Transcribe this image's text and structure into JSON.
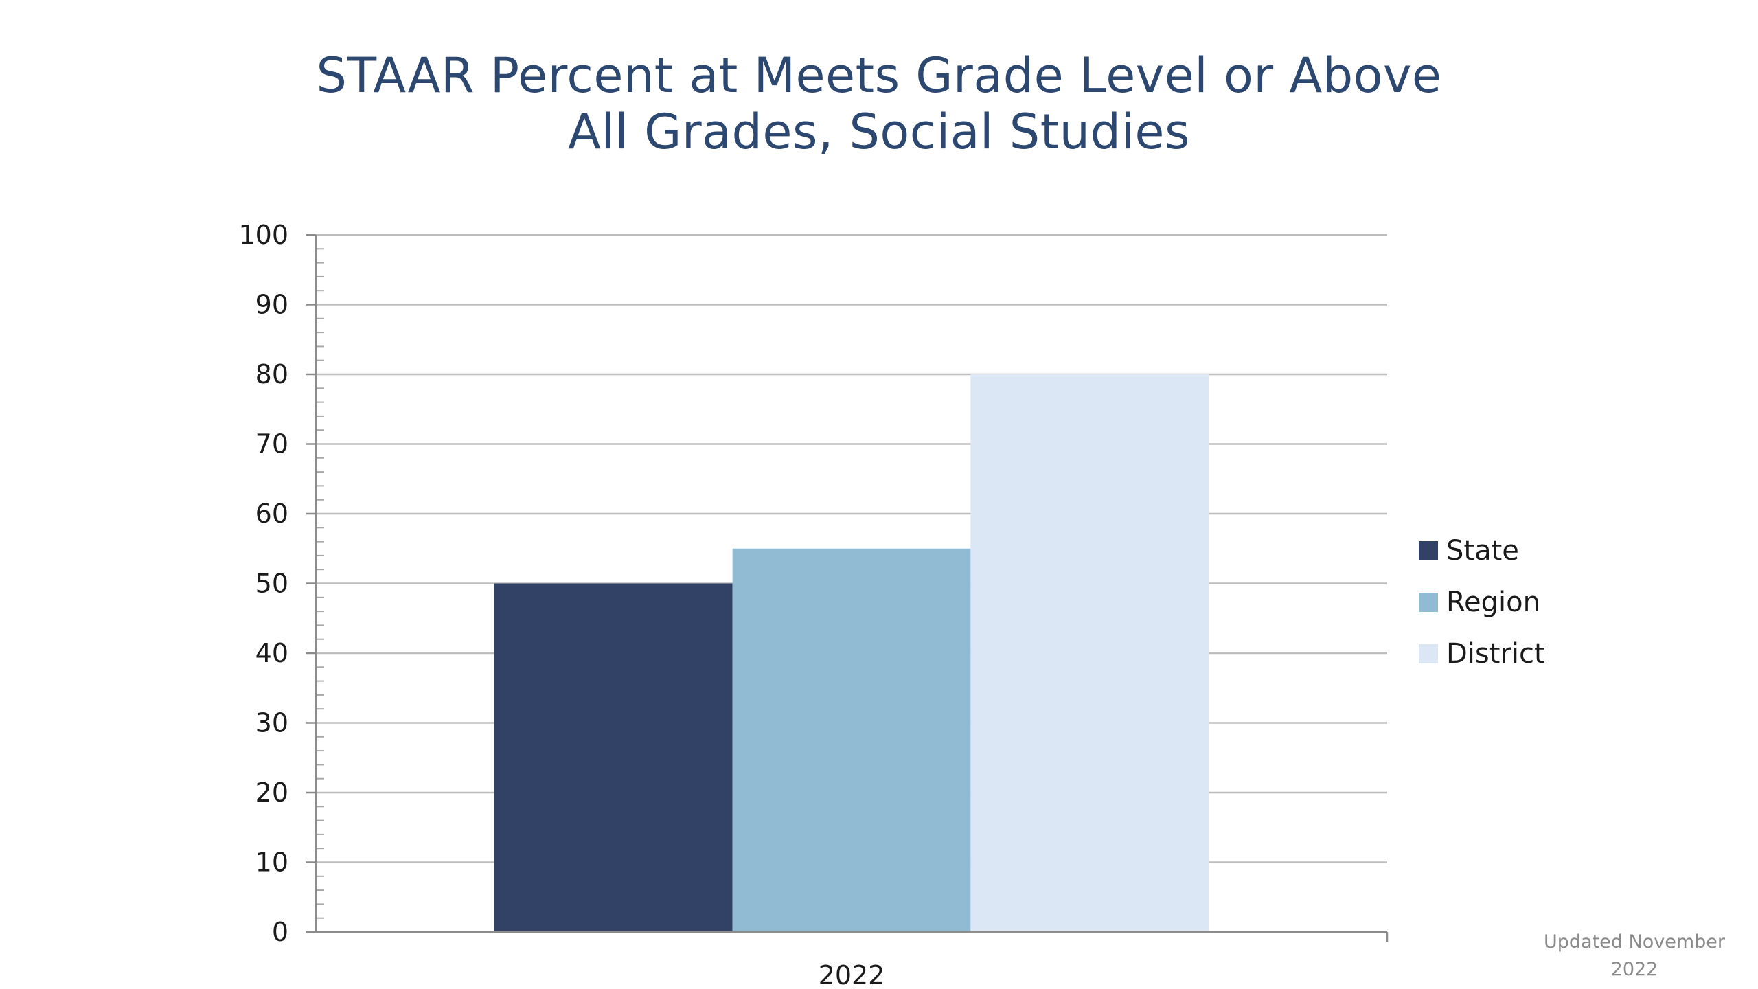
{
  "slide": {
    "title_line_1": "STAAR Percent at Meets Grade Level or Above",
    "title_line_2": "All Grades, Social Studies",
    "note_line_1": "Updated November",
    "note_line_2": "2022"
  },
  "chart_data": {
    "type": "bar",
    "title": "STAAR Percent at Meets Grade Level or Above All Grades, Social Studies",
    "categories": [
      "2022"
    ],
    "series": [
      {
        "name": "State",
        "values": [
          50
        ],
        "color": "#324266"
      },
      {
        "name": "Region",
        "values": [
          55
        ],
        "color": "#91bbd2"
      },
      {
        "name": "District",
        "values": [
          80
        ],
        "color": "#dbe7f4"
      }
    ],
    "xlabel": "",
    "ylabel": "",
    "ylim": [
      0,
      100
    ],
    "yticks": [
      "0",
      "10",
      "20",
      "30",
      "40",
      "50",
      "60",
      "70",
      "80",
      "90",
      "100"
    ],
    "grid": true,
    "legend_position": "right",
    "colors": {
      "gridline": "#bdbdbd",
      "axis": "#8c8c8c",
      "title": "#2c4770"
    }
  }
}
